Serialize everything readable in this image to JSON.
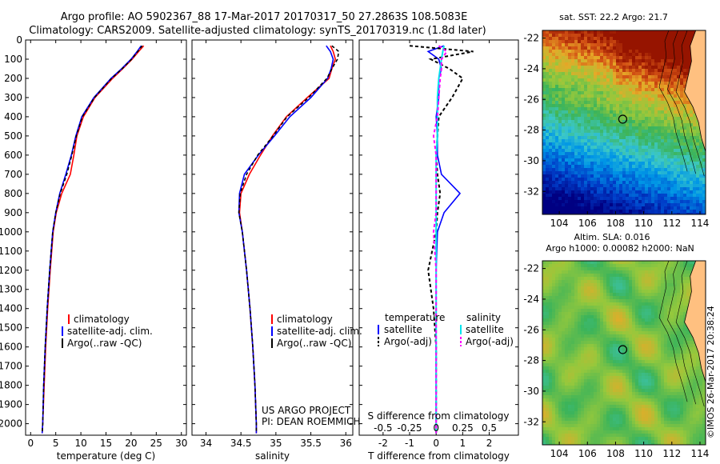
{
  "header": {
    "line1": "Argo profile: AO 5902367_88 17-Mar-2017 20170317_50 27.2863S 108.5083E",
    "line2": "Climatology: CARS2009. Satellite-adjusted climatology: synTS_20170319.nc (1.8d later)"
  },
  "colors": {
    "climatology": "#ff0000",
    "satellite": "#0000ff",
    "argo": "#000000",
    "sat_salinity": "#00e5ee",
    "argo_salinity": "#ff00ff"
  },
  "chart_data": [
    {
      "type": "line",
      "id": "temperature",
      "xlabel": "temperature (deg C)",
      "ylabel": "depth",
      "xlim": [
        -1,
        31
      ],
      "ylim": [
        2060,
        0
      ],
      "xticks": [
        "0",
        "5",
        "10",
        "15",
        "20",
        "25",
        "30"
      ],
      "yticks": [
        "0",
        "100",
        "200",
        "300",
        "400",
        "500",
        "600",
        "700",
        "800",
        "900",
        "1000",
        "1100",
        "1200",
        "1300",
        "1400",
        "1500",
        "1600",
        "1700",
        "1800",
        "1900",
        "2000"
      ],
      "legend": [
        "climatology",
        "satellite-adj. clim.",
        "Argo(..raw -QC)"
      ],
      "depth": [
        30,
        60,
        100,
        150,
        200,
        300,
        400,
        500,
        600,
        700,
        800,
        900,
        1000,
        1200,
        1400,
        1600,
        1800,
        2000,
        2050
      ],
      "series": [
        {
          "name": "climatology",
          "values": [
            22.5,
            21.5,
            20.2,
            18.3,
            16.3,
            12.8,
            10.5,
            9.2,
            8.6,
            7.9,
            6.2,
            5.1,
            4.5,
            3.9,
            3.4,
            3.0,
            2.7,
            2.4,
            2.3
          ]
        },
        {
          "name": "satellite-adj. clim.",
          "values": [
            22.0,
            21.2,
            20.0,
            18.1,
            16.0,
            12.6,
            10.2,
            9.0,
            8.1,
            7.0,
            5.8,
            5.0,
            4.4,
            3.8,
            3.3,
            2.9,
            2.6,
            2.4,
            2.3
          ]
        },
        {
          "name": "Argo(..raw -QC)",
          "values": [
            22.2,
            21.3,
            20.1,
            18.2,
            16.1,
            12.7,
            10.3,
            9.1,
            8.2,
            7.2,
            5.9,
            5.0,
            4.4,
            3.8,
            3.3,
            2.9,
            2.6,
            2.4,
            2.3
          ]
        }
      ]
    },
    {
      "type": "line",
      "id": "salinity",
      "xlabel": "salinity",
      "ylabel": "depth",
      "xlim": [
        33.8,
        36.1
      ],
      "ylim": [
        2060,
        0
      ],
      "xticks": [
        "34",
        "34.5",
        "35",
        "35.5",
        "36"
      ],
      "legend": [
        "climatology",
        "satellite-adj. clim.",
        "Argo(..raw -QC)"
      ],
      "credit1": "US ARGO PROJECT",
      "credit2": "PI: DEAN ROEMMICH",
      "depth": [
        30,
        60,
        100,
        150,
        200,
        300,
        400,
        500,
        600,
        700,
        800,
        900,
        1000,
        1200,
        1400,
        1600,
        1800,
        2000,
        2050
      ],
      "series": [
        {
          "name": "climatology",
          "values": [
            35.78,
            35.82,
            35.85,
            35.8,
            35.76,
            35.45,
            35.15,
            34.95,
            34.78,
            34.62,
            34.5,
            34.48,
            34.52,
            34.58,
            34.63,
            34.67,
            34.7,
            34.72,
            34.72
          ]
        },
        {
          "name": "satellite-adj. clim.",
          "values": [
            35.72,
            35.78,
            35.82,
            35.79,
            35.74,
            35.5,
            35.2,
            34.98,
            34.75,
            34.55,
            34.48,
            34.47,
            34.52,
            34.58,
            34.63,
            34.67,
            34.7,
            34.72,
            34.72
          ]
        },
        {
          "name": "Argo(..raw -QC)",
          "values": [
            35.8,
            35.9,
            35.88,
            35.8,
            35.73,
            35.47,
            35.16,
            34.96,
            34.74,
            34.58,
            34.49,
            34.47,
            34.52,
            34.58,
            34.63,
            34.67,
            34.7,
            34.72,
            34.72
          ]
        }
      ]
    },
    {
      "type": "line",
      "id": "differences",
      "xlabel": "T difference from climatology",
      "xlabel2": "S difference from climatology",
      "xlim": [
        -2.9,
        3.1
      ],
      "ylim": [
        2060,
        0
      ],
      "xticks": [
        "-2",
        "-1",
        "0",
        "1",
        "2"
      ],
      "xticks2": [
        "-0.5",
        "-0.25",
        "0",
        "0.25",
        "0.5"
      ],
      "legend_title_t": "temperature",
      "legend_title_s": "salinity",
      "legend_t": [
        "satellite",
        "Argo(-adj)"
      ],
      "legend_s": [
        "satellite",
        "Argo(-adj)"
      ],
      "depth": [
        30,
        60,
        100,
        150,
        200,
        300,
        400,
        500,
        600,
        700,
        800,
        900,
        1000,
        1200,
        1400,
        1600,
        1800,
        2000,
        2050
      ],
      "series": [
        {
          "name": "T satellite",
          "values": [
            0.3,
            -0.3,
            0.1,
            0.2,
            0.1,
            0.1,
            0.0,
            0.05,
            0.05,
            0.2,
            0.9,
            0.3,
            0.05,
            0.0,
            0.0,
            0.0,
            0.0,
            0.0,
            0.0
          ]
        },
        {
          "name": "T Argo(-adj)",
          "values": [
            -1.0,
            1.4,
            -0.2,
            0.5,
            1.0,
            0.6,
            0.1,
            0.05,
            0.0,
            0.05,
            0.15,
            0.05,
            0.0,
            -0.3,
            -0.1,
            0.0,
            0.0,
            0.0,
            0.0
          ]
        },
        {
          "name": "S satellite",
          "values": [
            0.3,
            0.25,
            0.2,
            0.15,
            0.1,
            0.05,
            0.05,
            0.05,
            0.0,
            0.0,
            0.0,
            0.0,
            0.0,
            0.0,
            0.0,
            0.0,
            0.0,
            0.0,
            0.0
          ]
        },
        {
          "name": "S Argo(-adj)",
          "values": [
            0.1,
            0.4,
            0.2,
            0.2,
            0.15,
            0.1,
            0.05,
            -0.1,
            0.0,
            0.0,
            0.0,
            0.0,
            -0.1,
            0.0,
            0.0,
            0.0,
            0.0,
            0.0,
            0.0
          ]
        }
      ]
    },
    {
      "type": "heatmap",
      "id": "sst_map",
      "title": "sat. SST: 22.2  Argo: 21.7",
      "xlim": [
        102.8,
        114.4
      ],
      "ylim": [
        -33.5,
        -21.5
      ],
      "xticks": [
        "104",
        "106",
        "108",
        "110",
        "112",
        "114"
      ],
      "yticks": [
        "-22",
        "-24",
        "-26",
        "-28",
        "-30",
        "-32"
      ],
      "marker": {
        "lon": 108.51,
        "lat": -27.29
      }
    },
    {
      "type": "heatmap",
      "id": "sla_map",
      "title1": "Altim. SLA: 0.016",
      "title2": "Argo h1000: 0.00082 h2000: NaN",
      "xlim": [
        102.8,
        114.4
      ],
      "ylim": [
        -33.5,
        -21.5
      ],
      "xticks": [
        "104",
        "106",
        "108",
        "110",
        "112",
        "114"
      ],
      "yticks": [
        "-22",
        "-24",
        "-26",
        "-28",
        "-30",
        "-32"
      ],
      "marker": {
        "lon": 108.51,
        "lat": -27.29
      }
    }
  ],
  "footer_stamp": "©IMOS 26-Mar-2017 20:38:24"
}
